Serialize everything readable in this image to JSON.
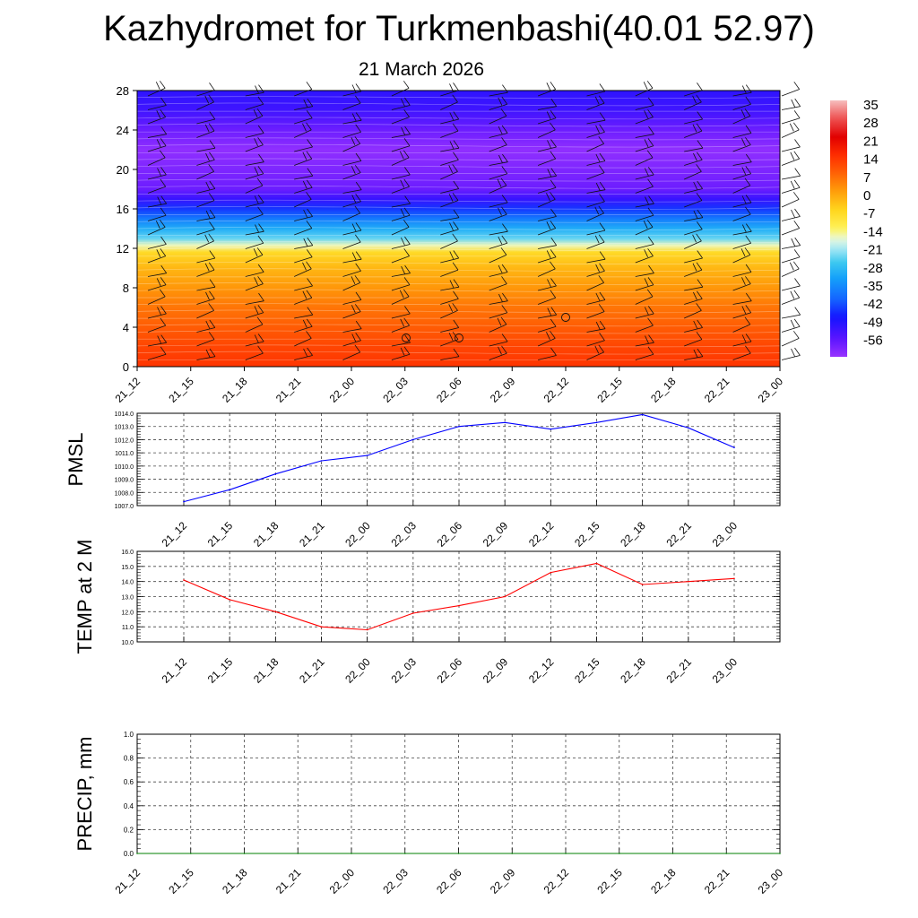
{
  "page": {
    "title": "Kazhydromet for Turkmenbashi(40.01 52.97)",
    "subtitle": "21 March 2026"
  },
  "time_labels": [
    "21_12",
    "21_15",
    "21_18",
    "21_21",
    "22_00",
    "22_03",
    "22_06",
    "22_09",
    "22_12",
    "22_15",
    "22_18",
    "22_21",
    "23_00"
  ],
  "chart_data": [
    {
      "type": "heatmap",
      "name": "cross-section",
      "yticks": [
        0,
        4,
        8,
        12,
        16,
        20,
        24,
        28
      ],
      "ylim": [
        0,
        28
      ],
      "xticks": [
        "21_12",
        "21_15",
        "21_18",
        "21_21",
        "22_00",
        "22_03",
        "22_06",
        "22_09",
        "22_12",
        "22_15",
        "22_18",
        "22_21",
        "23_00"
      ],
      "colorbar": {
        "labels": [
          "35",
          "28",
          "21",
          "14",
          "7",
          "0",
          "-7",
          "-14",
          "-21",
          "-28",
          "-35",
          "-42",
          "-49",
          "-56"
        ],
        "range": [
          -60,
          38
        ]
      },
      "bands": [
        {
          "y": 0,
          "v": 16
        },
        {
          "y": 2,
          "v": 14
        },
        {
          "y": 4,
          "v": 11
        },
        {
          "y": 6,
          "v": 8
        },
        {
          "y": 8,
          "v": 4
        },
        {
          "y": 10,
          "v": 0
        },
        {
          "y": 11.6,
          "v": -5
        },
        {
          "y": 12.3,
          "v": -14
        },
        {
          "y": 13,
          "v": -22
        },
        {
          "y": 14,
          "v": -28
        },
        {
          "y": 15,
          "v": -35
        },
        {
          "y": 16,
          "v": -42
        },
        {
          "y": 17,
          "v": -49
        },
        {
          "y": 18,
          "v": -55
        },
        {
          "y": 20,
          "v": -57
        },
        {
          "y": 22,
          "v": -59
        },
        {
          "y": 24,
          "v": -55
        },
        {
          "y": 26,
          "v": -50
        },
        {
          "y": 28,
          "v": -48
        }
      ]
    },
    {
      "type": "line",
      "ylabel": "PMSL",
      "ylim": [
        1007,
        1014
      ],
      "yticks": [
        "1007.0",
        "1008.0",
        "1009.0",
        "1010.0",
        "1011.0",
        "1012.0",
        "1013.0",
        "1014.0"
      ],
      "x": [
        "21_12",
        "21_15",
        "21_18",
        "21_21",
        "22_00",
        "22_03",
        "22_06",
        "22_09",
        "22_12",
        "22_15",
        "22_18",
        "22_21",
        "23_00"
      ],
      "series": [
        {
          "color": "#0000ff",
          "values": [
            1007.3,
            1008.2,
            1009.4,
            1010.4,
            1010.8,
            1012.0,
            1013.0,
            1013.3,
            1012.8,
            1013.3,
            1013.9,
            1012.9,
            1011.4
          ]
        }
      ]
    },
    {
      "type": "line",
      "ylabel": "TEMP at 2 M",
      "ylim": [
        10,
        16
      ],
      "yticks": [
        "10.0",
        "11.0",
        "12.0",
        "13.0",
        "14.0",
        "15.0",
        "16.0"
      ],
      "x": [
        "21_12",
        "21_15",
        "21_18",
        "21_21",
        "22_00",
        "22_03",
        "22_06",
        "22_09",
        "22_12",
        "22_15",
        "22_18",
        "22_21",
        "23_00"
      ],
      "series": [
        {
          "color": "#ff0000",
          "values": [
            14.1,
            12.8,
            12.0,
            11.0,
            10.8,
            11.9,
            12.4,
            13.0,
            14.6,
            15.2,
            13.8,
            14.0,
            14.2
          ]
        }
      ]
    },
    {
      "type": "line",
      "ylabel": "PRECIP, mm",
      "ylim": [
        0,
        1
      ],
      "yticks": [
        "0.0",
        "0.2",
        "0.4",
        "0.6",
        "0.8",
        "1.0"
      ],
      "x": [
        "21_12",
        "21_15",
        "21_18",
        "21_21",
        "22_00",
        "22_03",
        "22_06",
        "22_09",
        "22_12",
        "22_15",
        "22_18",
        "22_21",
        "23_00"
      ],
      "series": [
        {
          "color": "#008000",
          "values": [
            0,
            0,
            0,
            0,
            0,
            0,
            0,
            0,
            0,
            0,
            0,
            0,
            0
          ]
        }
      ]
    }
  ]
}
